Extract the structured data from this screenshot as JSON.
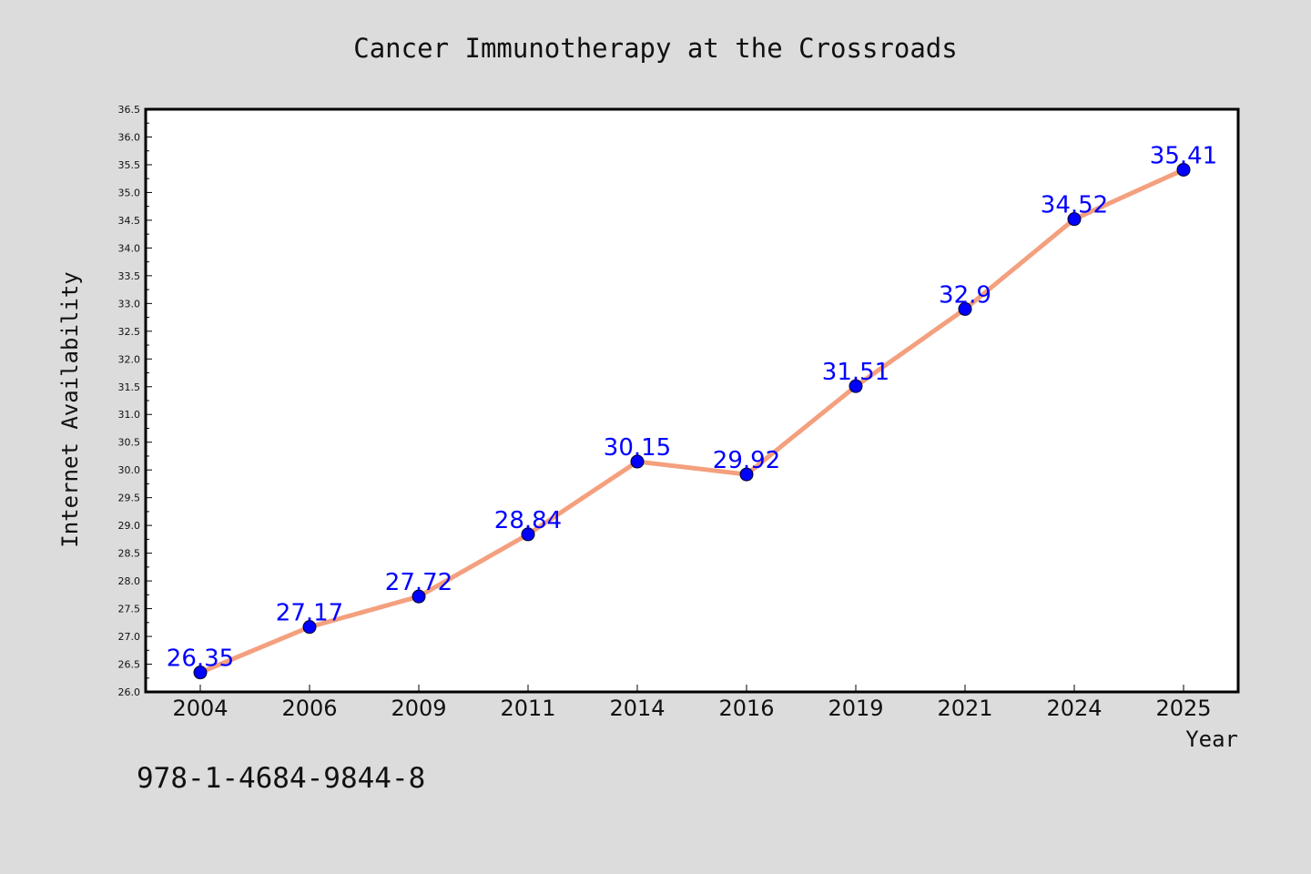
{
  "chart_data": {
    "type": "line",
    "title": "Cancer Immunotherapy at the Crossroads",
    "xlabel": "Year",
    "ylabel": "Internet Availability",
    "categories": [
      "2004",
      "2006",
      "2009",
      "2011",
      "2014",
      "2016",
      "2019",
      "2021",
      "2024",
      "2025"
    ],
    "series": [
      {
        "values": [
          26.35,
          27.17,
          27.72,
          28.84,
          30.15,
          29.92,
          31.51,
          32.9,
          34.52,
          35.41
        ],
        "labels": [
          "26.35",
          "27.17",
          "27.72",
          "28.84",
          "30.15",
          "29.92",
          "31.51",
          "32.9",
          "34.52",
          "35.41"
        ],
        "line_color": "#f4a07e",
        "marker_color": "#0000ff"
      }
    ],
    "ylim": [
      26.0,
      36.5
    ],
    "ytick_step": 0.5,
    "grid": false,
    "legend": "none"
  },
  "footer": {
    "isbn": "978-1-4684-9844-8"
  },
  "colors": {
    "background": "#dcdcdc",
    "plot_background": "#ffffff",
    "label_color": "#0000ff"
  }
}
